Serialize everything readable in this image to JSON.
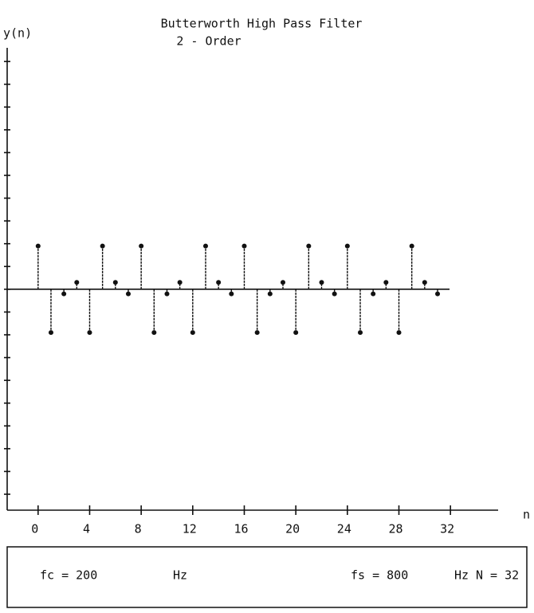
{
  "chart_data": {
    "type": "stem",
    "title": "Butterworth High Pass Filter",
    "subtitle": "2 - Order",
    "y_label": "y(n)",
    "x_label": "n",
    "x": [
      0,
      1,
      2,
      3,
      4,
      5,
      6,
      7,
      8,
      9,
      10,
      11,
      12,
      13,
      14,
      15,
      16,
      17,
      18,
      19,
      20,
      21,
      22,
      23,
      24,
      25,
      26,
      27,
      28,
      29,
      30,
      31
    ],
    "values": [
      1.9,
      -1.9,
      -0.2,
      0.3,
      -1.9,
      1.9,
      0.3,
      -0.2,
      1.9,
      -1.9,
      -0.2,
      0.3,
      -1.9,
      1.9,
      0.3,
      -0.2,
      1.9,
      -1.9,
      -0.2,
      0.3,
      -1.9,
      1.9,
      0.3,
      -0.2,
      1.9,
      -1.9,
      -0.2,
      0.3,
      -1.9,
      1.9,
      0.3,
      -0.2
    ],
    "color": "#111111",
    "xlim": [
      -2.4,
      35.7
    ],
    "xticks": [
      0,
      4,
      8,
      12,
      16,
      20,
      24,
      28,
      32
    ],
    "ylim": [
      -9.7,
      10.6
    ],
    "yticks": [
      -9,
      -8,
      -7,
      -6,
      -5,
      -4,
      -3,
      -2,
      -1,
      0,
      1,
      2,
      3,
      4,
      5,
      6,
      7,
      8,
      9,
      10
    ],
    "parameters": [
      "fc = 200",
      "Hz",
      "fs = 800",
      "Hz",
      "N = 32"
    ]
  }
}
